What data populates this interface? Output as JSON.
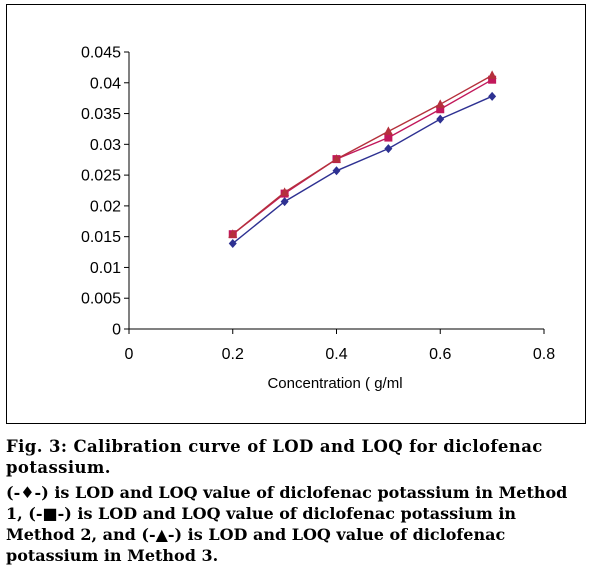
{
  "chart_data": {
    "type": "line",
    "title": "",
    "xlabel": "Concentration (  g/ml",
    "ylabel": "",
    "xlim": [
      0,
      0.8
    ],
    "ylim": [
      0,
      0.045
    ],
    "x_ticks": [
      "0",
      "0.2",
      "0.4",
      "0.6",
      "0.8"
    ],
    "y_ticks": [
      "0",
      "0.005",
      "0.01",
      "0.015",
      "0.02",
      "0.025",
      "0.03",
      "0.035",
      "0.04",
      "0.045"
    ],
    "grid": false,
    "legend": "none",
    "series": [
      {
        "marker": "diamond",
        "color": "#2e3192",
        "x": [
          0.2,
          0.3,
          0.4,
          0.5,
          0.6,
          0.7
        ],
        "y": [
          0.0139,
          0.0207,
          0.0257,
          0.0293,
          0.0341,
          0.0378
        ]
      },
      {
        "marker": "square",
        "color": "#c2185b",
        "x": [
          0.2,
          0.3,
          0.4,
          0.5,
          0.6,
          0.7
        ],
        "y": [
          0.0154,
          0.022,
          0.0276,
          0.0311,
          0.0357,
          0.0405
        ]
      },
      {
        "marker": "triangle",
        "color": "#b5303c",
        "x": [
          0.2,
          0.3,
          0.4,
          0.5,
          0.6,
          0.7
        ],
        "y": [
          0.0154,
          0.0222,
          0.0276,
          0.0321,
          0.0365,
          0.0412
        ]
      }
    ]
  },
  "caption": {
    "title": "Fig. 3: Calibration curve of LOD and LOQ for diclofenac potassium.",
    "legend": "(-♦-) is LOD and LOQ value of diclofenac potassium in Method 1, (-■-) is LOD and LOQ value of diclofenac potassium in Method 2, and (-▲-) is LOD and LOQ value of diclofenac potassium in Method 3."
  }
}
